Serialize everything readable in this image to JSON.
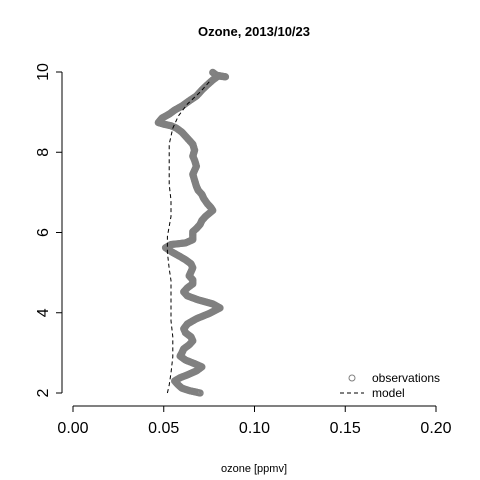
{
  "chart_data": {
    "type": "line",
    "title": "Ozone, 2013/10/23",
    "xlabel": "ozone [ppmv]",
    "ylabel": "",
    "xlim": [
      0.0,
      0.2
    ],
    "ylim": [
      2,
      10
    ],
    "x_ticks": [
      "0.00",
      "0.05",
      "0.10",
      "0.15",
      "0.20"
    ],
    "y_ticks": [
      "2",
      "4",
      "6",
      "8",
      "10"
    ],
    "legend_position": "bottom-right",
    "colors": {
      "observations": "#808080",
      "model": "#000000"
    },
    "series": [
      {
        "name": "observations",
        "style": "points",
        "points": [
          [
            0.07,
            2.0
          ],
          [
            0.064,
            2.06
          ],
          [
            0.06,
            2.12
          ],
          [
            0.058,
            2.2
          ],
          [
            0.056,
            2.3
          ],
          [
            0.059,
            2.38
          ],
          [
            0.063,
            2.45
          ],
          [
            0.068,
            2.55
          ],
          [
            0.071,
            2.65
          ],
          [
            0.067,
            2.73
          ],
          [
            0.062,
            2.82
          ],
          [
            0.059,
            2.92
          ],
          [
            0.06,
            3.0
          ],
          [
            0.061,
            3.1
          ],
          [
            0.064,
            3.2
          ],
          [
            0.066,
            3.3
          ],
          [
            0.065,
            3.4
          ],
          [
            0.062,
            3.5
          ],
          [
            0.061,
            3.6
          ],
          [
            0.063,
            3.72
          ],
          [
            0.068,
            3.85
          ],
          [
            0.075,
            3.98
          ],
          [
            0.081,
            4.12
          ],
          [
            0.077,
            4.22
          ],
          [
            0.069,
            4.32
          ],
          [
            0.063,
            4.42
          ],
          [
            0.061,
            4.52
          ],
          [
            0.063,
            4.62
          ],
          [
            0.066,
            4.72
          ],
          [
            0.066,
            4.82
          ],
          [
            0.064,
            4.92
          ],
          [
            0.065,
            5.02
          ],
          [
            0.066,
            5.12
          ],
          [
            0.065,
            5.22
          ],
          [
            0.062,
            5.32
          ],
          [
            0.059,
            5.4
          ],
          [
            0.055,
            5.5
          ],
          [
            0.051,
            5.62
          ],
          [
            0.054,
            5.7
          ],
          [
            0.062,
            5.74
          ],
          [
            0.066,
            5.82
          ],
          [
            0.066,
            5.92
          ],
          [
            0.066,
            6.02
          ],
          [
            0.068,
            6.1
          ],
          [
            0.07,
            6.2
          ],
          [
            0.071,
            6.3
          ],
          [
            0.073,
            6.4
          ],
          [
            0.077,
            6.55
          ],
          [
            0.076,
            6.62
          ],
          [
            0.074,
            6.72
          ],
          [
            0.072,
            6.85
          ],
          [
            0.071,
            6.95
          ],
          [
            0.069,
            7.05
          ],
          [
            0.068,
            7.15
          ],
          [
            0.067,
            7.3
          ],
          [
            0.066,
            7.45
          ],
          [
            0.067,
            7.55
          ],
          [
            0.068,
            7.65
          ],
          [
            0.067,
            7.8
          ],
          [
            0.066,
            7.9
          ],
          [
            0.067,
            8.05
          ],
          [
            0.066,
            8.2
          ],
          [
            0.064,
            8.3
          ],
          [
            0.062,
            8.4
          ],
          [
            0.06,
            8.5
          ],
          [
            0.057,
            8.6
          ],
          [
            0.054,
            8.66
          ],
          [
            0.05,
            8.7
          ],
          [
            0.047,
            8.74
          ],
          [
            0.049,
            8.85
          ],
          [
            0.053,
            8.95
          ],
          [
            0.056,
            9.05
          ],
          [
            0.06,
            9.15
          ],
          [
            0.064,
            9.28
          ],
          [
            0.068,
            9.4
          ],
          [
            0.071,
            9.55
          ],
          [
            0.074,
            9.68
          ],
          [
            0.077,
            9.8
          ],
          [
            0.08,
            9.9
          ],
          [
            0.084,
            9.88
          ],
          [
            0.079,
            9.92
          ],
          [
            0.077,
            9.99
          ]
        ]
      },
      {
        "name": "model",
        "style": "dashed-line",
        "points": [
          [
            0.052,
            2.0
          ],
          [
            0.053,
            2.2
          ],
          [
            0.054,
            2.5
          ],
          [
            0.055,
            2.9
          ],
          [
            0.055,
            3.4
          ],
          [
            0.054,
            3.8
          ],
          [
            0.054,
            4.3
          ],
          [
            0.054,
            4.8
          ],
          [
            0.053,
            5.1
          ],
          [
            0.052,
            5.5
          ],
          [
            0.052,
            5.9
          ],
          [
            0.054,
            6.4
          ],
          [
            0.054,
            6.8
          ],
          [
            0.053,
            7.2
          ],
          [
            0.053,
            7.7
          ],
          [
            0.053,
            8.2
          ],
          [
            0.055,
            8.6
          ],
          [
            0.058,
            8.9
          ],
          [
            0.063,
            9.2
          ],
          [
            0.07,
            9.5
          ],
          [
            0.076,
            9.8
          ]
        ]
      }
    ]
  }
}
